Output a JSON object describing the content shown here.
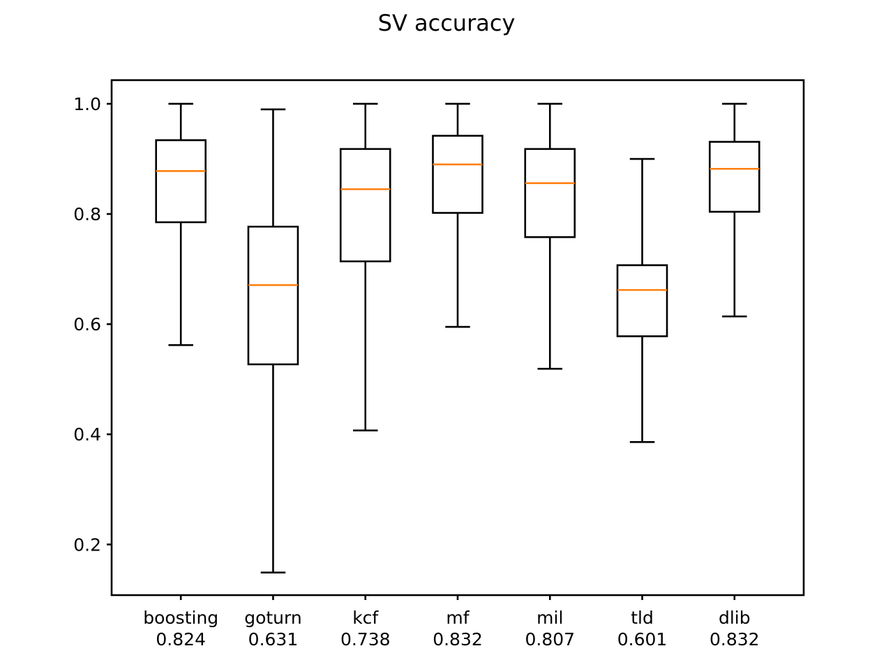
{
  "chart_data": {
    "type": "boxplot",
    "title": "SV accuracy",
    "xlabel": "",
    "ylabel": "",
    "ylim": [
      0.108,
      1.043
    ],
    "y_ticks": [
      0.2,
      0.4,
      0.6,
      0.8,
      1.0
    ],
    "y_tick_labels": [
      "0.2",
      "0.4",
      "0.6",
      "0.8",
      "1.0"
    ],
    "categories": [
      "boosting",
      "goturn",
      "kcf",
      "mf",
      "mil",
      "tld",
      "dlib"
    ],
    "category_scores": [
      "0.824",
      "0.631",
      "0.738",
      "0.832",
      "0.807",
      "0.601",
      "0.832"
    ],
    "boxes": [
      {
        "name": "boosting",
        "whisker_low": 0.562,
        "q1": 0.785,
        "median": 0.878,
        "q3": 0.934,
        "whisker_high": 1.0
      },
      {
        "name": "goturn",
        "whisker_low": 0.149,
        "q1": 0.527,
        "median": 0.671,
        "q3": 0.777,
        "whisker_high": 0.99
      },
      {
        "name": "kcf",
        "whisker_low": 0.407,
        "q1": 0.714,
        "median": 0.845,
        "q3": 0.918,
        "whisker_high": 1.0
      },
      {
        "name": "mf",
        "whisker_low": 0.595,
        "q1": 0.802,
        "median": 0.89,
        "q3": 0.942,
        "whisker_high": 1.0
      },
      {
        "name": "mil",
        "whisker_low": 0.519,
        "q1": 0.758,
        "median": 0.856,
        "q3": 0.918,
        "whisker_high": 1.0
      },
      {
        "name": "tld",
        "whisker_low": 0.386,
        "q1": 0.578,
        "median": 0.662,
        "q3": 0.707,
        "whisker_high": 0.9
      },
      {
        "name": "dlib",
        "whisker_low": 0.614,
        "q1": 0.804,
        "median": 0.882,
        "q3": 0.931,
        "whisker_high": 1.0
      }
    ],
    "grid": false,
    "colors": {
      "box": "#000000",
      "median": "#ff7f0e",
      "background": "#ffffff"
    }
  }
}
